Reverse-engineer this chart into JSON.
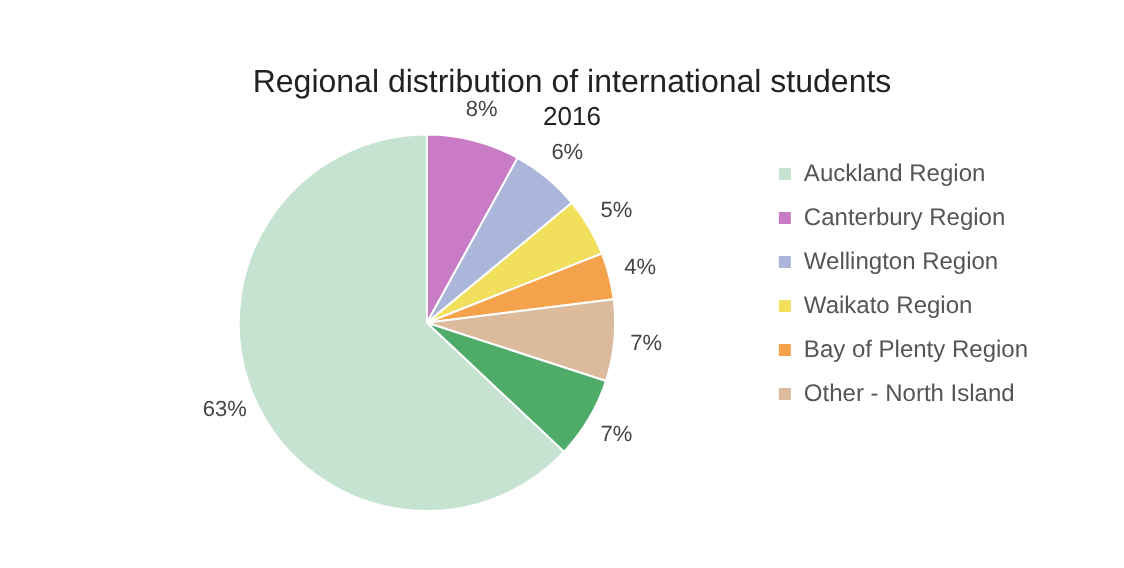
{
  "chart_data": {
    "type": "pie",
    "title": "Regional distribution of international students",
    "subtitle": "2016",
    "categories": [
      "Auckland Region",
      "Canterbury Region",
      "Wellington Region",
      "Waikato Region",
      "Bay of Plenty Region",
      "Other - North Island",
      null
    ],
    "values": [
      63,
      8,
      6,
      5,
      4,
      7,
      7
    ],
    "colors": [
      "#c6e2d0",
      "#c97bc6",
      "#abb6da",
      "#f2df5c",
      "#f5a24c",
      "#dbbb9c",
      "#4fab68"
    ],
    "value_labels": [
      "63%",
      "8%",
      "6%",
      "5%",
      "4%",
      "7%",
      "7%"
    ],
    "legend": "right"
  }
}
